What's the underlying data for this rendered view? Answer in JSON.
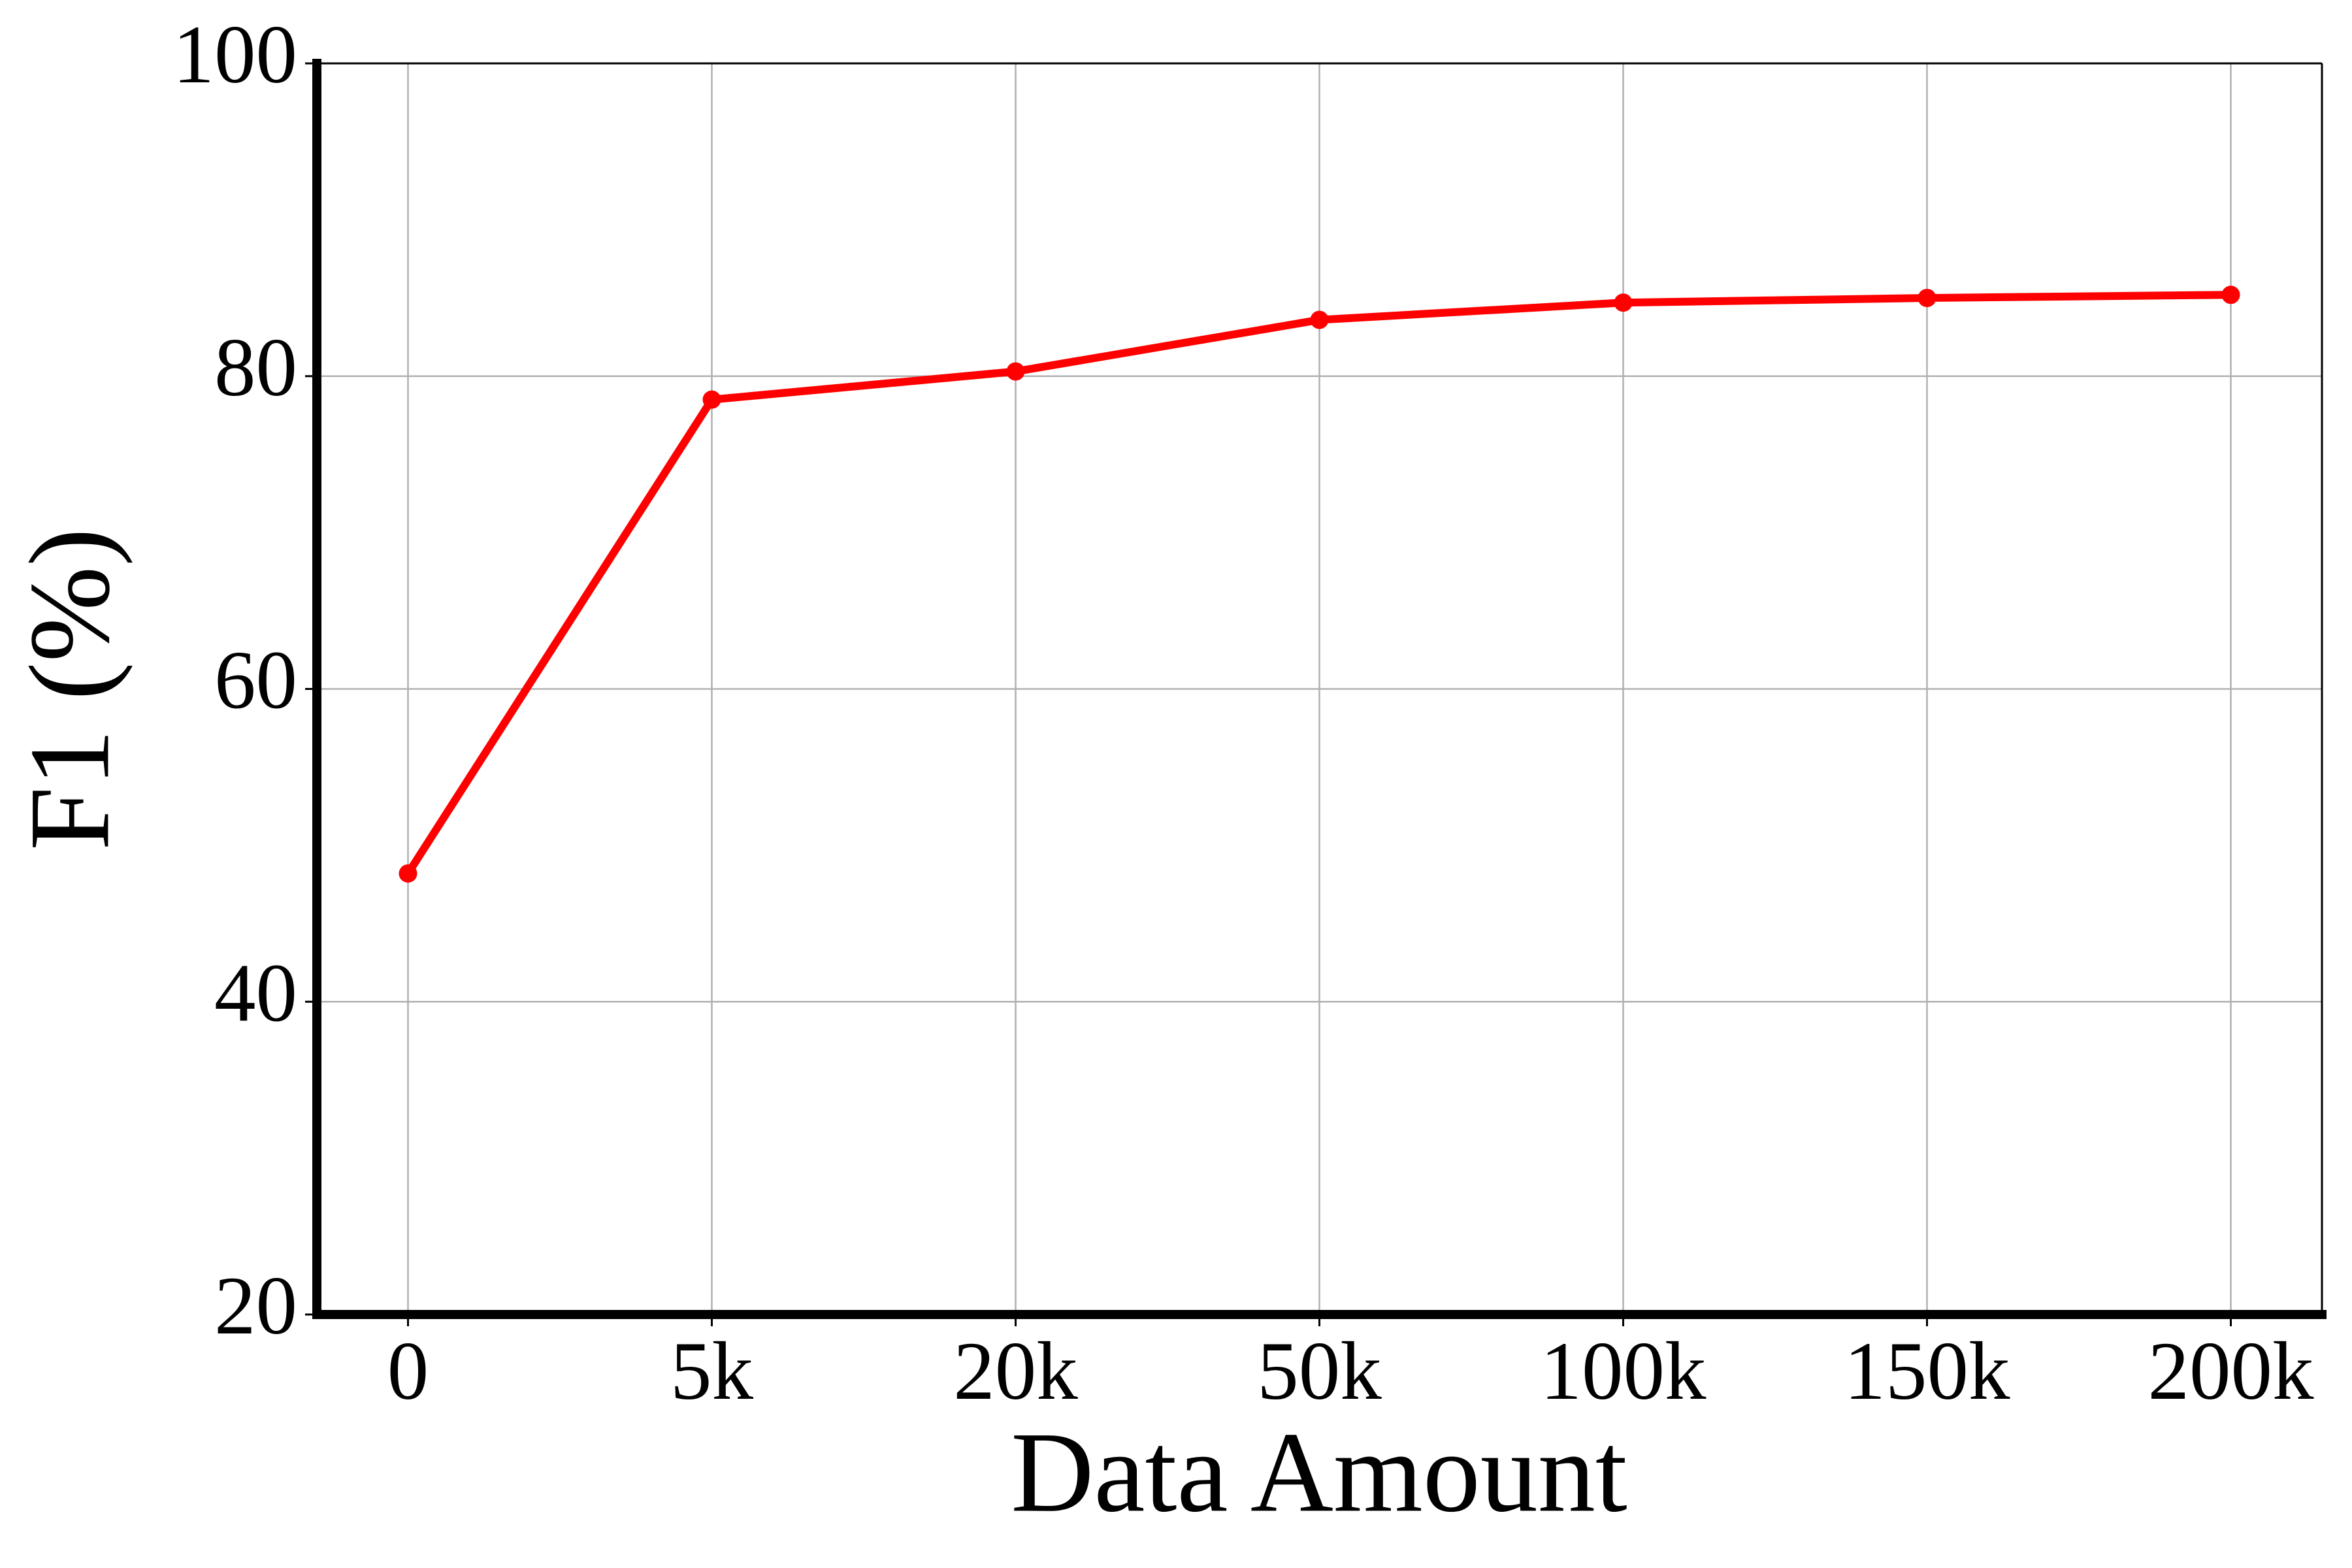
{
  "chart_data": {
    "type": "line",
    "x_label": "Data Amount",
    "y_label": "F1 (%)",
    "categories": [
      "0",
      "5k",
      "20k",
      "50k",
      "100k",
      "150k",
      "200k"
    ],
    "series": [
      {
        "name": "F1",
        "color": "#ff0000",
        "values": [
          48.2,
          78.5,
          80.3,
          83.6,
          84.7,
          85.0,
          85.2
        ]
      }
    ],
    "ylim": [
      20,
      100
    ],
    "yticks": [
      20,
      40,
      60,
      80,
      100
    ],
    "grid": true
  }
}
